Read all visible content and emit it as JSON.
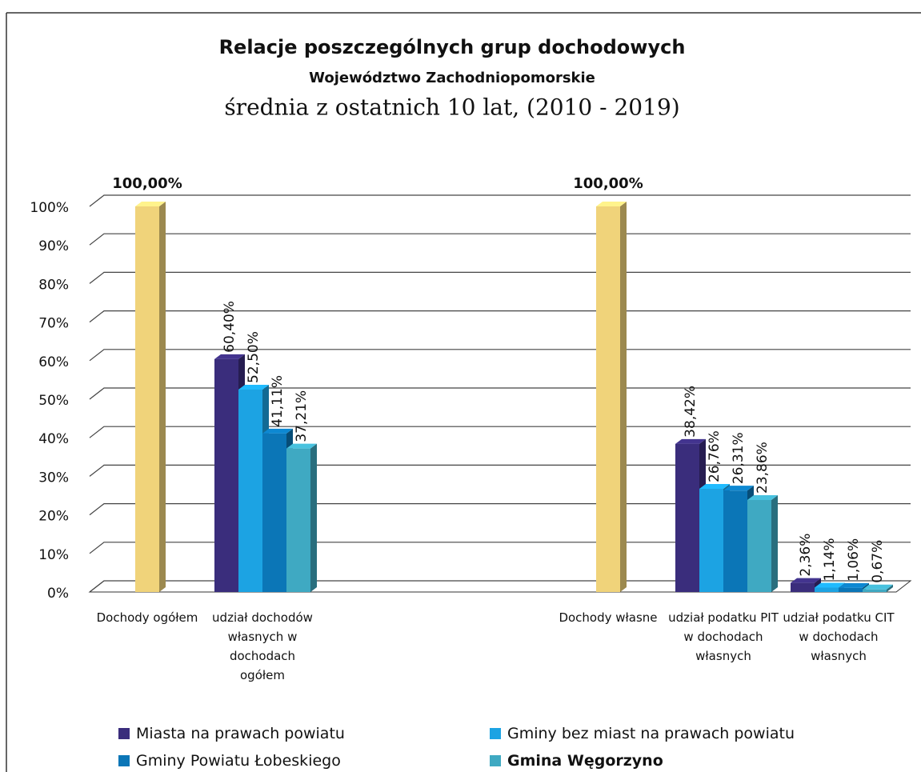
{
  "chart_data": {
    "type": "bar3d",
    "title": "Relacje poszczególnych grup dochodowych",
    "subtitle": "Województwo  Zachodniopomorskie",
    "subtitle2": "średnia z ostatnich 10 lat, (2010 - 2019)",
    "categories": [
      "Dochody ogółem",
      "udział dochodów własnych w dochodach ogółem",
      null,
      null,
      "Dochody własne",
      "udział podatku PIT w dochodach własnych",
      "udział podatku CIT w dochodach własnych"
    ],
    "totals": {
      "color": "#f0d37a",
      "values": [
        100,
        null,
        null,
        null,
        100,
        null,
        null
      ],
      "value_labels": [
        "100,00%",
        null,
        null,
        null,
        "100,00%",
        null,
        null
      ]
    },
    "series": [
      {
        "name": "Miasta na prawach powiatu",
        "color": "#3a2d7c",
        "values": [
          null,
          60.4,
          null,
          null,
          null,
          38.42,
          2.36
        ],
        "value_labels": [
          null,
          "60,40%",
          null,
          null,
          null,
          "38,42%",
          "2,36%"
        ]
      },
      {
        "name": "Gminy bez miast na prawach powiatu",
        "color": "#1ca3e3",
        "values": [
          null,
          52.5,
          null,
          null,
          null,
          26.76,
          1.14
        ],
        "value_labels": [
          null,
          "52,50%",
          null,
          null,
          null,
          "26,76%",
          "1,14%"
        ]
      },
      {
        "name": "Gminy Powiatu Łobeskiego",
        "color": "#0b76b7",
        "values": [
          null,
          41.11,
          null,
          null,
          null,
          26.31,
          1.06
        ],
        "value_labels": [
          null,
          "41,11%",
          null,
          null,
          null,
          "26,31%",
          "1,06%"
        ]
      },
      {
        "name": "Gmina Węgorzyno",
        "color": "#3fa9c2",
        "values": [
          null,
          37.21,
          null,
          null,
          null,
          23.86,
          0.67
        ],
        "value_labels": [
          null,
          "37,21%",
          null,
          null,
          null,
          "23,86%",
          "0,67%"
        ]
      }
    ],
    "ylim": [
      0,
      100
    ],
    "yticks": [
      {
        "value": 0,
        "label": "0%"
      },
      {
        "value": 10,
        "label": "10%"
      },
      {
        "value": 20,
        "label": "20%"
      },
      {
        "value": 30,
        "label": "30%"
      },
      {
        "value": 40,
        "label": "40%"
      },
      {
        "value": 50,
        "label": "50%"
      },
      {
        "value": 60,
        "label": "60%"
      },
      {
        "value": 70,
        "label": "70%"
      },
      {
        "value": 80,
        "label": "80%"
      },
      {
        "value": 90,
        "label": "90%"
      },
      {
        "value": 100,
        "label": "100%"
      }
    ],
    "grid": true
  }
}
